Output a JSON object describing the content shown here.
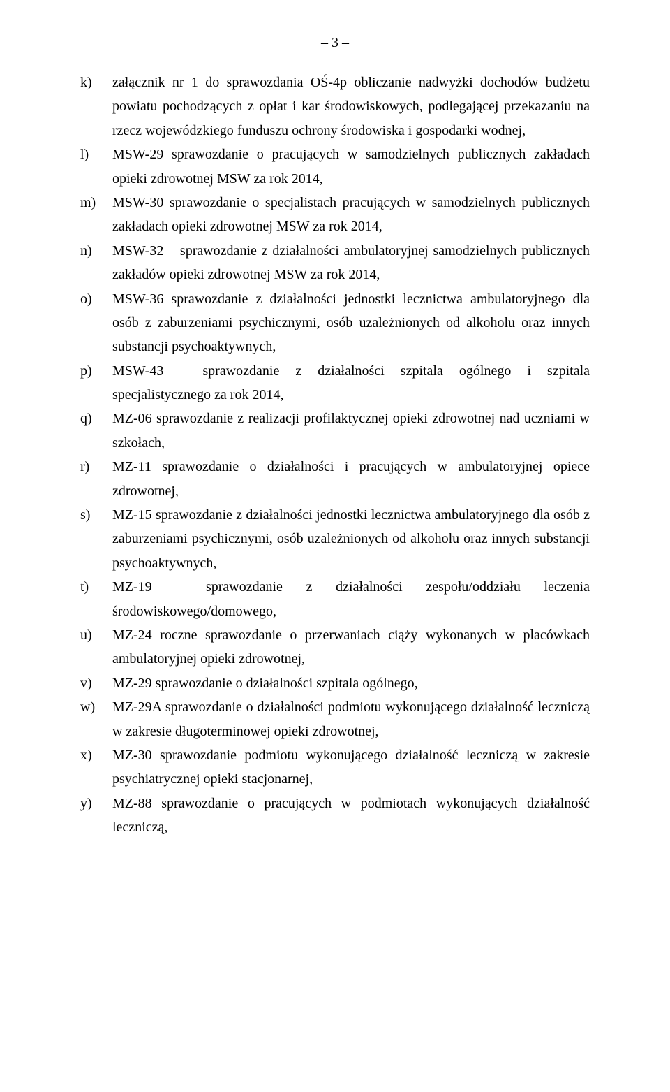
{
  "page_number": "– 3 –",
  "items": [
    {
      "marker": "k)",
      "text": "załącznik nr 1 do sprawozdania OŚ-4p obliczanie nadwyżki dochodów budżetu powiatu pochodzących z opłat i kar środowiskowych, podlegającej przekazaniu na rzecz wojewódzkiego funduszu ochrony środowiska i gospodarki wodnej,"
    },
    {
      "marker": "l)",
      "text": "MSW-29 sprawozdanie o pracujących w samodzielnych publicznych zakładach opieki zdrowotnej MSW za rok 2014,"
    },
    {
      "marker": "m)",
      "text": "MSW-30 sprawozdanie o specjalistach pracujących w samodzielnych publicznych zakładach opieki zdrowotnej MSW za rok 2014,"
    },
    {
      "marker": "n)",
      "text": "MSW-32 – sprawozdanie z działalności ambulatoryjnej samodzielnych publicznych zakładów opieki zdrowotnej MSW za rok 2014,"
    },
    {
      "marker": "o)",
      "text": "MSW-36 sprawozdanie z działalności jednostki lecznictwa ambulatoryjnego dla osób z zaburzeniami psychicznymi, osób uzależnionych od alkoholu oraz innych substancji psychoaktywnych,"
    },
    {
      "marker": "p)",
      "text": "MSW-43 – sprawozdanie z działalności szpitala ogólnego i szpitala specjalistycznego za rok 2014,"
    },
    {
      "marker": "q)",
      "text": "MZ-06 sprawozdanie z realizacji profilaktycznej opieki zdrowotnej nad uczniami w szkołach,"
    },
    {
      "marker": "r)",
      "text": "MZ-11 sprawozdanie o działalności i pracujących w ambulatoryjnej opiece zdrowotnej,"
    },
    {
      "marker": "s)",
      "text": "MZ-15 sprawozdanie z działalności jednostki lecznictwa ambulatoryjnego dla osób z zaburzeniami psychicznymi, osób uzależnionych od alkoholu oraz innych substancji psychoaktywnych,"
    },
    {
      "marker": "t)",
      "text": "MZ-19 – sprawozdanie z działalności zespołu/oddziału leczenia środowiskowego/domowego,"
    },
    {
      "marker": "u)",
      "text": "MZ-24 roczne sprawozdanie o przerwaniach ciąży wykonanych w placówkach ambulatoryjnej opieki zdrowotnej,"
    },
    {
      "marker": "v)",
      "text": "MZ-29 sprawozdanie o działalności szpitala ogólnego,"
    },
    {
      "marker": "w)",
      "text": "MZ-29A sprawozdanie o działalności podmiotu wykonującego działalność leczniczą w zakresie długoterminowej opieki zdrowotnej,"
    },
    {
      "marker": "x)",
      "text": "MZ-30 sprawozdanie podmiotu wykonującego działalność leczniczą w zakresie psychiatrycznej opieki stacjonarnej,"
    },
    {
      "marker": "y)",
      "text": "MZ-88 sprawozdanie o pracujących w podmiotach wykonujących działalność leczniczą,"
    }
  ]
}
